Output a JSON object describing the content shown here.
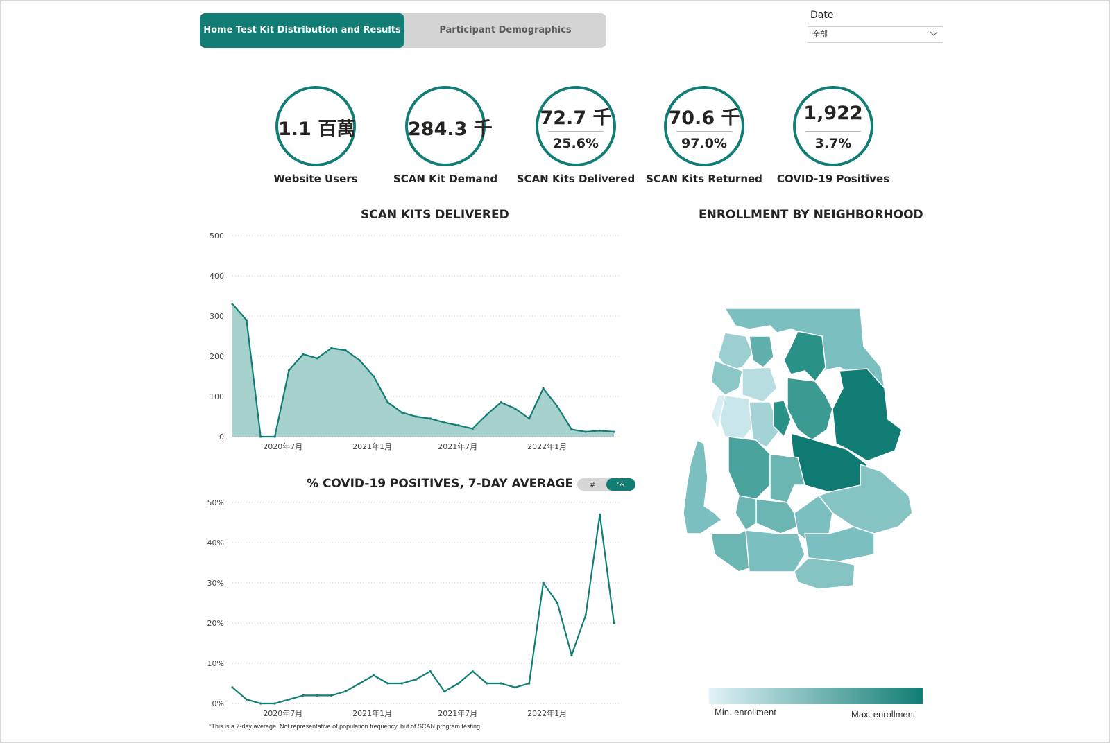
{
  "tabs": [
    {
      "label": "Home Test Kit Distribution and Results"
    },
    {
      "label": "Participant Demographics"
    }
  ],
  "filter": {
    "label": "Date",
    "value": "全部"
  },
  "kpis": [
    {
      "value": "1.1 百萬",
      "label": "Website Users"
    },
    {
      "value": "284.3 千",
      "label": "SCAN Kit Demand"
    },
    {
      "value": "72.7 千",
      "percent": "25.6%",
      "label": "SCAN Kits Delivered"
    },
    {
      "value": "70.6 千",
      "percent": "97.0%",
      "label": "SCAN Kits Returned"
    },
    {
      "value": "1,922",
      "percent": "3.7%",
      "label": "COVID-19 Positives"
    }
  ],
  "colors": {
    "accent": "#117d74",
    "area_fill": "#a7d1cc",
    "map_light": "#d9eef2",
    "map_dark": "#117d74"
  },
  "chart_data": [
    {
      "type": "area",
      "title": "SCAN KITS DELIVERED",
      "x_ticks": [
        "2020年7月",
        "2021年1月",
        "2021年7月",
        "2022年1月"
      ],
      "y_ticks": [
        "0",
        "100",
        "200",
        "300",
        "400",
        "500"
      ],
      "ylim": [
        0,
        500
      ],
      "x": [
        "2020-03",
        "2020-04",
        "2020-05",
        "2020-06",
        "2020-07",
        "2020-08",
        "2020-09",
        "2020-10",
        "2020-11",
        "2020-12",
        "2021-01",
        "2021-02",
        "2021-03",
        "2021-04",
        "2021-05",
        "2021-06",
        "2021-07",
        "2021-08",
        "2021-09",
        "2021-10",
        "2021-11",
        "2021-12",
        "2022-01",
        "2022-02",
        "2022-03",
        "2022-04",
        "2022-05",
        "2022-06"
      ],
      "values": [
        330,
        290,
        0,
        0,
        165,
        205,
        195,
        220,
        215,
        190,
        150,
        85,
        60,
        50,
        45,
        35,
        28,
        20,
        55,
        85,
        70,
        45,
        120,
        75,
        18,
        12,
        15,
        12
      ],
      "grid": true
    },
    {
      "type": "line",
      "title": "% COVID-19 POSITIVES, 7-DAY AVERAGE",
      "x_ticks": [
        "2020年7月",
        "2021年1月",
        "2021年7月",
        "2022年1月"
      ],
      "y_ticks": [
        "0%",
        "10%",
        "20%",
        "30%",
        "40%",
        "50%"
      ],
      "ylim": [
        0,
        50
      ],
      "x": [
        "2020-03",
        "2020-04",
        "2020-05",
        "2020-06",
        "2020-07",
        "2020-08",
        "2020-09",
        "2020-10",
        "2020-11",
        "2020-12",
        "2021-01",
        "2021-02",
        "2021-03",
        "2021-04",
        "2021-05",
        "2021-06",
        "2021-07",
        "2021-08",
        "2021-09",
        "2021-10",
        "2021-11",
        "2021-12",
        "2022-01",
        "2022-02",
        "2022-03",
        "2022-04",
        "2022-05",
        "2022-06"
      ],
      "values": [
        4,
        1,
        0,
        0,
        1,
        2,
        2,
        2,
        3,
        5,
        7,
        5,
        5,
        6,
        8,
        3,
        5,
        8,
        5,
        5,
        4,
        5,
        30,
        25,
        12,
        22,
        47,
        20
      ],
      "toggle": {
        "count_label": "#",
        "percent_label": "%"
      },
      "grid": true
    }
  ],
  "map": {
    "title": "ENROLLMENT BY NEIGHBORHOOD",
    "legend_min": "Min. enrollment",
    "legend_max": "Max. enrollment"
  },
  "footnote": "*This is a 7-day average. Not representative of population frequency, but of SCAN program testing."
}
